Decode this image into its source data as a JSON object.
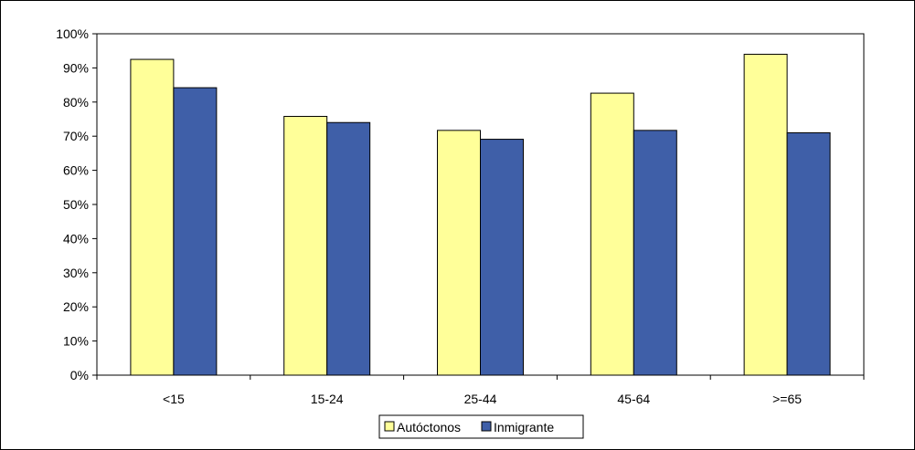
{
  "chart_data": {
    "type": "bar",
    "title": "",
    "xlabel": "",
    "ylabel": "",
    "categories": [
      "<15",
      "15-24",
      "25-44",
      "45-64",
      ">=65"
    ],
    "series": [
      {
        "name": "Autóctonos",
        "color": "#FFFF99",
        "values": [
          92.5,
          75.8,
          71.7,
          82.6,
          94.0
        ]
      },
      {
        "name": "Inmigrante",
        "color": "#3F5FA8",
        "values": [
          84.2,
          74.0,
          69.1,
          71.7,
          71.0
        ]
      }
    ],
    "y_ticks": [
      "0%",
      "10%",
      "20%",
      "30%",
      "40%",
      "50%",
      "60%",
      "70%",
      "80%",
      "90%",
      "100%"
    ],
    "ylim": [
      0,
      100
    ],
    "y_unit": "%",
    "grid": false,
    "legend": "bottom-center",
    "plot_background": "#ffffff",
    "border_color": "#000000"
  }
}
